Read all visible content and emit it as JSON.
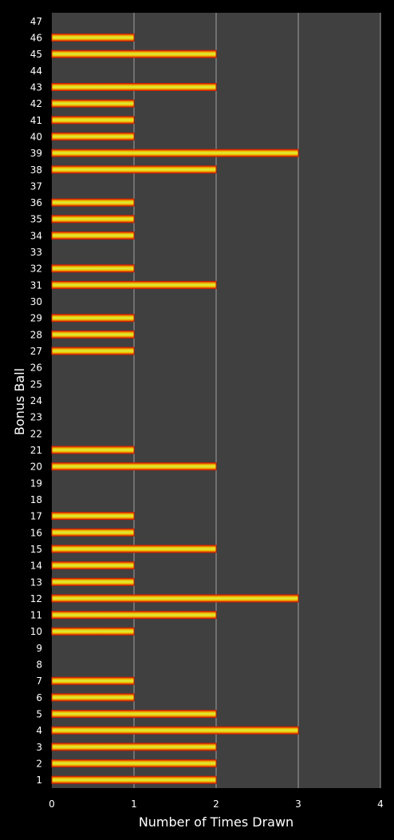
{
  "chart_data": {
    "type": "bar",
    "orientation": "horizontal",
    "xlabel": "Number of Times Drawn",
    "ylabel": "Bonus Ball",
    "xlim": [
      0,
      4
    ],
    "x_ticks": [
      "0",
      "1",
      "2",
      "3",
      "4"
    ],
    "grid": true,
    "categories": [
      "1",
      "2",
      "3",
      "4",
      "5",
      "6",
      "7",
      "8",
      "9",
      "10",
      "11",
      "12",
      "13",
      "14",
      "15",
      "16",
      "17",
      "18",
      "19",
      "20",
      "21",
      "22",
      "23",
      "24",
      "25",
      "26",
      "27",
      "28",
      "29",
      "30",
      "31",
      "32",
      "33",
      "34",
      "35",
      "36",
      "37",
      "38",
      "39",
      "40",
      "41",
      "42",
      "43",
      "44",
      "45",
      "46",
      "47"
    ],
    "values": [
      2,
      2,
      2,
      3,
      2,
      1,
      1,
      0,
      0,
      1,
      2,
      3,
      1,
      1,
      2,
      1,
      1,
      0,
      0,
      2,
      1,
      0,
      0,
      0,
      0,
      0,
      1,
      1,
      1,
      0,
      2,
      1,
      0,
      1,
      1,
      1,
      0,
      2,
      3,
      1,
      1,
      1,
      2,
      0,
      2,
      1,
      0
    ],
    "colors": {
      "background": "#000000",
      "plot_area": "#404040",
      "gridline": "#a0a0a0",
      "bar_center": "#d8f040",
      "bar_mid": "#f2c400",
      "bar_edge": "#d42000"
    }
  }
}
